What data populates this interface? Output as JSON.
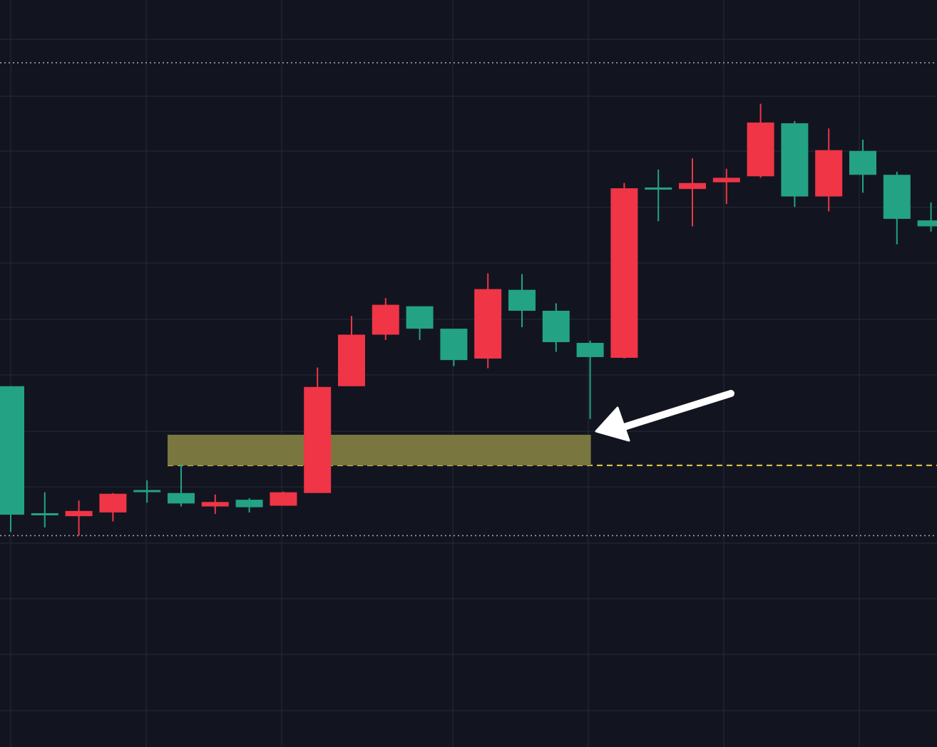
{
  "colors": {
    "background": "#121520",
    "grid": "#252a37",
    "bullish": "#24a284",
    "bearish": "#ef3546",
    "zone": "#7a7640",
    "dashed_level": "#e7c84d",
    "dotted_level": "#b7bac4",
    "arrow": "#ffffff"
  },
  "chart_data": {
    "type": "candlestick",
    "grid": true,
    "ylim": [
      0,
      1000
    ],
    "up_color_name": "green",
    "down_color_name": "red",
    "candles": [
      {
        "i": 0,
        "open": 311,
        "high": 483,
        "low": 288,
        "close": 483
      },
      {
        "i": 1,
        "open": 312,
        "high": 341,
        "low": 294,
        "close": 313
      },
      {
        "i": 2,
        "open": 316,
        "high": 330,
        "low": 283,
        "close": 309
      },
      {
        "i": 3,
        "open": 339,
        "high": 340,
        "low": 302,
        "close": 314
      },
      {
        "i": 4,
        "open": 343,
        "high": 357,
        "low": 327,
        "close": 344
      },
      {
        "i": 5,
        "open": 326,
        "high": 380,
        "low": 322,
        "close": 340
      },
      {
        "i": 6,
        "open": 328,
        "high": 338,
        "low": 312,
        "close": 322
      },
      {
        "i": 7,
        "open": 321,
        "high": 333,
        "low": 314,
        "close": 331
      },
      {
        "i": 8,
        "open": 341,
        "high": 342,
        "low": 324,
        "close": 323
      },
      {
        "i": 9,
        "open": 482,
        "high": 508,
        "low": 340,
        "close": 340
      },
      {
        "i": 10,
        "open": 552,
        "high": 577,
        "low": 489,
        "close": 483
      },
      {
        "i": 11,
        "open": 592,
        "high": 601,
        "low": 545,
        "close": 552
      },
      {
        "i": 12,
        "open": 560,
        "high": 590,
        "low": 545,
        "close": 590
      },
      {
        "i": 13,
        "open": 518,
        "high": 551,
        "low": 510,
        "close": 560
      },
      {
        "i": 14,
        "open": 613,
        "high": 634,
        "low": 507,
        "close": 520
      },
      {
        "i": 15,
        "open": 584,
        "high": 633,
        "low": 562,
        "close": 612
      },
      {
        "i": 16,
        "open": 542,
        "high": 594,
        "low": 529,
        "close": 584
      },
      {
        "i": 17,
        "open": 522,
        "high": 544,
        "low": 439,
        "close": 541
      },
      {
        "i": 18,
        "open": 748,
        "high": 755,
        "low": 520,
        "close": 521
      },
      {
        "i": 19,
        "open": 748,
        "high": 773,
        "low": 704,
        "close": 749
      },
      {
        "i": 20,
        "open": 755,
        "high": 788,
        "low": 697,
        "close": 747
      },
      {
        "i": 21,
        "open": 762,
        "high": 774,
        "low": 727,
        "close": 756
      },
      {
        "i": 22,
        "open": 836,
        "high": 861,
        "low": 762,
        "close": 764
      },
      {
        "i": 23,
        "open": 737,
        "high": 838,
        "low": 723,
        "close": 835
      },
      {
        "i": 24,
        "open": 799,
        "high": 828,
        "low": 717,
        "close": 737
      },
      {
        "i": 25,
        "open": 766,
        "high": 813,
        "low": 742,
        "close": 798
      },
      {
        "i": 26,
        "open": 707,
        "high": 770,
        "low": 673,
        "close": 766
      },
      {
        "i": 27,
        "open": 697,
        "high": 729,
        "low": 690,
        "close": 705
      }
    ],
    "levels": {
      "upper_dotted": 916,
      "lower_dotted": 283,
      "dashed": 377
    },
    "zone": {
      "from_index": 5,
      "to_index": 17,
      "low": 377,
      "high": 418
    },
    "annotation": {
      "type": "arrow",
      "points_to_index": 17,
      "points_to_value": 420
    }
  }
}
